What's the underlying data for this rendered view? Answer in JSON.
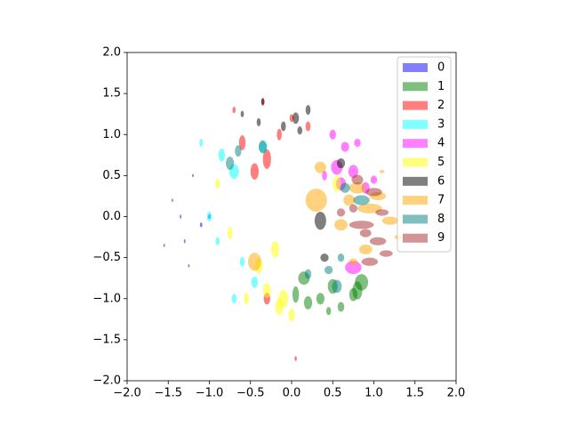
{
  "chart_data": {
    "type": "scatter",
    "marker": "ellipse",
    "alpha": 0.5,
    "legend": "upper right",
    "xlim": [
      -2,
      2
    ],
    "ylim": [
      -2,
      2
    ],
    "xticks": [
      {
        "value": -2,
        "label": "−2.0"
      },
      {
        "value": -1.5,
        "label": "−1.5"
      },
      {
        "value": -1,
        "label": "−1.0"
      },
      {
        "value": -0.5,
        "label": "−0.5"
      },
      {
        "value": 0,
        "label": "0.0"
      },
      {
        "value": 0.5,
        "label": "0.5"
      },
      {
        "value": 1,
        "label": "1.0"
      },
      {
        "value": 1.5,
        "label": "1.5"
      },
      {
        "value": 2,
        "label": "2.0"
      }
    ],
    "yticks": [
      {
        "value": -2,
        "label": "−2.0"
      },
      {
        "value": -1.5,
        "label": "−1.5"
      },
      {
        "value": -1,
        "label": "−1.0"
      },
      {
        "value": -0.5,
        "label": "−0.5"
      },
      {
        "value": 0,
        "label": "0.0"
      },
      {
        "value": 0.5,
        "label": "0.5"
      },
      {
        "value": 1,
        "label": "1.0"
      },
      {
        "value": 1.5,
        "label": "1.5"
      },
      {
        "value": 2,
        "label": "2.0"
      }
    ],
    "series": [
      {
        "name": "0",
        "color": "#0000ff",
        "x": [
          -1.45,
          -1.3,
          -1.2,
          -1.1,
          -1.55,
          -1.35,
          -1.0,
          -1.25
        ],
        "values": [
          0.2,
          -0.3,
          0.5,
          -0.1,
          -0.35,
          0.0,
          0.0,
          -0.6
        ],
        "width": [
          0.02,
          0.02,
          0.02,
          0.03,
          0.02,
          0.02,
          0.03,
          0.02
        ],
        "height": [
          0.04,
          0.05,
          0.04,
          0.06,
          0.04,
          0.05,
          0.06,
          0.04
        ]
      },
      {
        "name": "1",
        "color": "#008000",
        "x": [
          0.15,
          0.35,
          0.5,
          0.8,
          0.6,
          0.2,
          0.05,
          0.85,
          0.45,
          0.75
        ],
        "values": [
          -0.75,
          -1.0,
          -0.85,
          -0.9,
          -1.1,
          -1.05,
          -0.95,
          -0.8,
          -1.15,
          -0.95
        ],
        "width": [
          0.14,
          0.1,
          0.12,
          0.12,
          0.08,
          0.1,
          0.08,
          0.16,
          0.06,
          0.1
        ],
        "height": [
          0.16,
          0.14,
          0.18,
          0.22,
          0.12,
          0.16,
          0.2,
          0.2,
          0.1,
          0.16
        ]
      },
      {
        "name": "2",
        "color": "#ff0000",
        "x": [
          -0.3,
          -0.45,
          -0.6,
          -0.15,
          0.0,
          -0.35,
          0.2,
          -0.7,
          -0.3,
          0.05
        ],
        "values": [
          0.7,
          0.55,
          0.9,
          1.0,
          1.2,
          1.4,
          1.1,
          1.3,
          -1.0,
          -1.73
        ],
        "width": [
          0.1,
          0.1,
          0.08,
          0.06,
          0.05,
          0.04,
          0.06,
          0.04,
          0.08,
          0.03
        ],
        "height": [
          0.24,
          0.2,
          0.18,
          0.14,
          0.1,
          0.1,
          0.12,
          0.08,
          0.14,
          0.06
        ]
      },
      {
        "name": "3",
        "color": "#00ffff",
        "x": [
          -0.7,
          -0.85,
          -1.0,
          -0.9,
          -0.6,
          -0.45,
          -1.1,
          -0.7,
          -0.35
        ],
        "values": [
          0.55,
          0.75,
          0.0,
          -0.3,
          -0.55,
          -0.8,
          0.9,
          -1.0,
          0.85
        ],
        "width": [
          0.12,
          0.08,
          0.06,
          0.05,
          0.06,
          0.08,
          0.04,
          0.06,
          0.1
        ],
        "height": [
          0.18,
          0.16,
          0.12,
          0.1,
          0.12,
          0.14,
          0.1,
          0.12,
          0.14
        ]
      },
      {
        "name": "4",
        "color": "#ff00ff",
        "x": [
          0.55,
          0.75,
          0.9,
          0.65,
          0.5,
          0.8,
          0.6,
          1.0,
          0.4,
          0.75
        ],
        "values": [
          0.6,
          0.55,
          0.35,
          0.85,
          1.0,
          0.9,
          0.4,
          0.45,
          0.5,
          -0.62
        ],
        "width": [
          0.14,
          0.12,
          0.1,
          0.1,
          0.08,
          0.08,
          0.12,
          0.08,
          0.06,
          0.2
        ],
        "height": [
          0.18,
          0.16,
          0.14,
          0.12,
          0.12,
          0.1,
          0.16,
          0.1,
          0.12,
          0.16
        ]
      },
      {
        "name": "5",
        "color": "#ffff00",
        "x": [
          -0.1,
          -0.4,
          -0.15,
          0.0,
          -0.75,
          -0.2,
          -0.9,
          0.55,
          -0.3,
          -0.55
        ],
        "values": [
          -1.0,
          -0.6,
          -1.1,
          -1.2,
          -0.2,
          -0.4,
          0.4,
          0.4,
          -0.9,
          -1.0
        ],
        "width": [
          0.12,
          0.1,
          0.1,
          0.08,
          0.06,
          0.1,
          0.06,
          0.1,
          0.1,
          0.06
        ],
        "height": [
          0.22,
          0.18,
          0.2,
          0.16,
          0.16,
          0.2,
          0.12,
          0.2,
          0.18,
          0.14
        ]
      },
      {
        "name": "6",
        "color": "#000000",
        "x": [
          0.35,
          -0.1,
          0.05,
          0.2,
          -0.35,
          0.1,
          0.6,
          0.4,
          -0.4,
          -0.6
        ],
        "values": [
          -0.05,
          1.1,
          1.2,
          1.3,
          1.4,
          1.05,
          0.65,
          -0.5,
          1.15,
          1.25
        ],
        "width": [
          0.14,
          0.06,
          0.08,
          0.06,
          0.04,
          0.06,
          0.1,
          0.1,
          0.05,
          0.04
        ],
        "height": [
          0.22,
          0.12,
          0.14,
          0.12,
          0.08,
          0.1,
          0.12,
          0.1,
          0.1,
          0.08
        ]
      },
      {
        "name": "7",
        "color": "#ffa500",
        "x": [
          0.3,
          -0.45,
          0.95,
          1.05,
          0.8,
          1.2,
          0.7,
          0.9,
          0.35,
          1.1,
          1.3,
          0.6,
          0.75
        ],
        "values": [
          0.2,
          -0.55,
          0.1,
          0.25,
          0.35,
          -0.05,
          0.2,
          -0.4,
          0.6,
          0.55,
          -0.25,
          -0.1,
          -0.55
        ],
        "width": [
          0.26,
          0.16,
          0.3,
          0.2,
          0.2,
          0.2,
          0.14,
          0.16,
          0.14,
          0.06,
          0.1,
          0.16,
          0.1
        ],
        "height": [
          0.28,
          0.22,
          0.12,
          0.1,
          0.14,
          0.1,
          0.14,
          0.12,
          0.14,
          0.04,
          0.06,
          0.14,
          0.08
        ]
      },
      {
        "name": "8",
        "color": "#008080",
        "x": [
          -0.35,
          -0.75,
          0.55,
          0.85,
          0.65,
          0.45,
          -0.65,
          0.6,
          0.2
        ],
        "values": [
          0.85,
          0.65,
          -0.85,
          0.2,
          0.35,
          -0.65,
          0.8,
          -0.5,
          -0.7
        ],
        "width": [
          0.1,
          0.1,
          0.12,
          0.2,
          0.12,
          0.1,
          0.08,
          0.08,
          0.08
        ],
        "height": [
          0.16,
          0.16,
          0.16,
          0.12,
          0.12,
          0.1,
          0.14,
          0.1,
          0.12
        ]
      },
      {
        "name": "9",
        "color": "#a52a2a",
        "x": [
          0.85,
          1.05,
          0.95,
          1.15,
          0.8,
          1.0,
          0.9,
          0.75,
          1.1,
          0.6
        ],
        "values": [
          -0.1,
          -0.3,
          -0.55,
          -0.45,
          0.45,
          0.3,
          -0.2,
          0.1,
          0.05,
          0.05
        ],
        "width": [
          0.3,
          0.2,
          0.2,
          0.16,
          0.14,
          0.2,
          0.14,
          0.1,
          0.16,
          0.1
        ],
        "height": [
          0.1,
          0.1,
          0.1,
          0.08,
          0.12,
          0.1,
          0.1,
          0.1,
          0.08,
          0.1
        ]
      }
    ]
  }
}
